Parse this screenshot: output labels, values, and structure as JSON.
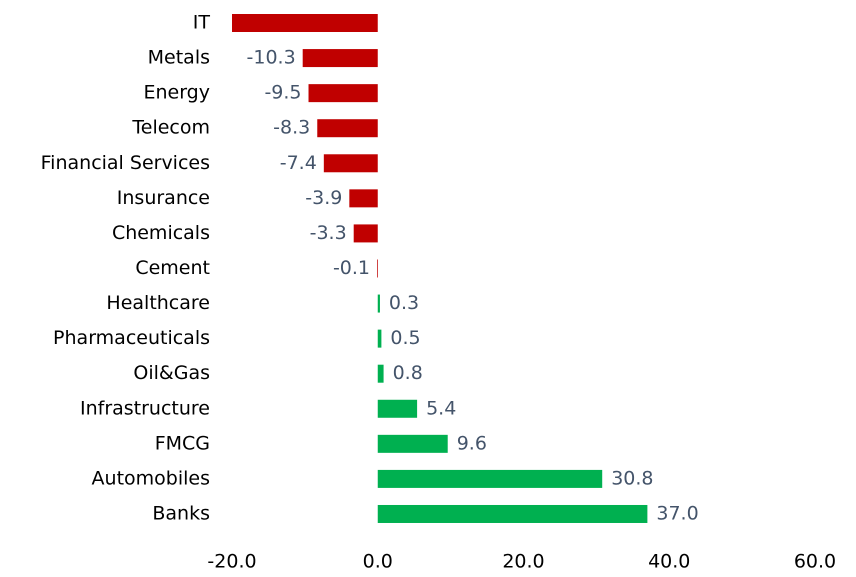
{
  "chart_data": {
    "type": "bar",
    "orientation": "horizontal",
    "categories": [
      "IT",
      "Metals",
      "Energy",
      "Telecom",
      "Financial Services",
      "Insurance",
      "Chemicals",
      "Cement",
      "Healthcare",
      "Pharmaceuticals",
      "Oil&Gas",
      "Infrastructure",
      "FMCG",
      "Automobiles",
      "Banks"
    ],
    "values": [
      -20.0,
      -10.3,
      -9.5,
      -8.3,
      -7.4,
      -3.9,
      -3.3,
      -0.1,
      0.3,
      0.5,
      0.8,
      5.4,
      9.6,
      30.8,
      37.0
    ],
    "value_labels": [
      null,
      "-10.3",
      "-9.5",
      "-8.3",
      "-7.4",
      "-3.9",
      "-3.3",
      "-0.1",
      "0.3",
      "0.5",
      "0.8",
      "5.4",
      "9.6",
      "30.8",
      "37.0"
    ],
    "negative_color": "#c00000",
    "positive_color": "#00b050",
    "xlim": [
      -20,
      60
    ],
    "xticks": [
      {
        "value": -20,
        "label": "-20.0"
      },
      {
        "value": 0,
        "label": "0.0"
      },
      {
        "value": 20,
        "label": "20.0"
      },
      {
        "value": 40,
        "label": "40.0"
      },
      {
        "value": 60,
        "label": "60.0"
      }
    ],
    "grid": false
  }
}
